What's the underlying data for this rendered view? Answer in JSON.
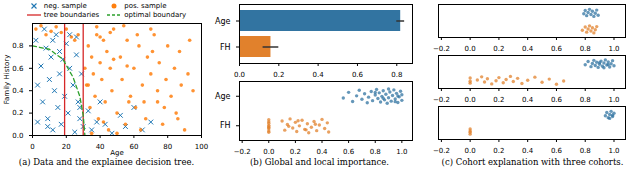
{
  "chart_data": [
    {
      "type": "scatter",
      "title": "(a) Data and the explainee decision tree.",
      "x_label": "Age",
      "y_label": "Family History",
      "xlim": [
        0,
        100
      ],
      "ylim": [
        0,
        1
      ],
      "xticks": [
        0,
        20,
        40,
        60,
        80,
        100
      ],
      "yticks": [
        {
          "value": 0,
          "label": "0.0"
        },
        0.2,
        0.4,
        0.6,
        0.8
      ],
      "legend": "upper right",
      "series": [
        {
          "name": "neg. sample",
          "color": "#1f77b4",
          "marker": "x",
          "x": [
            2,
            3,
            5,
            6,
            8,
            9,
            10,
            11,
            12,
            13,
            14,
            15,
            16,
            17,
            18,
            19,
            20,
            21,
            22,
            24,
            25,
            26,
            27,
            28,
            29,
            30,
            33,
            35,
            38,
            40,
            43,
            47,
            52,
            55,
            60,
            65,
            70,
            3,
            7,
            12,
            16,
            22,
            26,
            9,
            28
          ],
          "values": [
            0.85,
            0.45,
            0.62,
            0.3,
            0.78,
            0.15,
            0.5,
            0.7,
            0.05,
            0.4,
            0.9,
            0.25,
            0.55,
            0.1,
            0.68,
            0.35,
            0.82,
            0.2,
            0.6,
            0.45,
            0.03,
            0.72,
            0.3,
            0.15,
            0.55,
            0.08,
            0.22,
            0.05,
            0.12,
            0.3,
            0.1,
            0.02,
            0.18,
            0.08,
            0.25,
            0.05,
            0.12,
            0.12,
            0.95,
            0.85,
            0.75,
            0.9,
            0.88,
            0.08,
            0.25
          ]
        },
        {
          "name": "pos. sample",
          "color": "#ff7f0e",
          "marker": "o",
          "x": [
            2,
            5,
            8,
            11,
            14,
            17,
            20,
            23,
            25,
            27,
            31,
            32,
            33,
            34,
            35,
            36,
            37,
            38,
            39,
            40,
            41,
            42,
            43,
            44,
            45,
            46,
            47,
            48,
            50,
            52,
            53,
            55,
            56,
            58,
            60,
            61,
            63,
            65,
            67,
            68,
            70,
            72,
            74,
            75,
            77,
            79,
            80,
            82,
            84,
            85,
            87,
            88,
            90,
            92,
            95,
            35,
            42,
            50,
            57,
            64,
            71,
            78,
            86,
            93,
            38,
            46,
            54,
            62,
            70,
            33,
            40,
            48,
            56,
            66,
            74
          ],
          "values": [
            0.95,
            0.98,
            0.9,
            0.93,
            0.97,
            0.92,
            0.95,
            0.88,
            0.85,
            0.9,
            0.6,
            0.45,
            0.8,
            0.25,
            0.7,
            0.55,
            0.35,
            0.9,
            0.15,
            0.65,
            0.5,
            0.85,
            0.3,
            0.75,
            0.05,
            0.6,
            0.4,
            0.95,
            0.2,
            0.7,
            0.5,
            0.1,
            0.85,
            0.35,
            0.6,
            0.25,
            0.8,
            0.45,
            0.15,
            0.7,
            0.55,
            0.9,
            0.3,
            0.65,
            0.1,
            0.5,
            0.8,
            0.35,
            0.6,
            0.2,
            0.75,
            0.45,
            0.05,
            0.55,
            0.4,
            0.02,
            0.12,
            0.02,
            0.3,
            0.05,
            0.75,
            0.25,
            0.15,
            0.85,
            0.97,
            0.92,
            0.98,
            0.9,
            0.95,
            0.45,
            0.88,
            0.68,
            0.62,
            0.3,
            0.4
          ]
        },
        {
          "name": "tree boundaries",
          "color": "#d62728",
          "type": "vline",
          "line_style": "solid",
          "x": [
            19,
            30
          ]
        },
        {
          "name": "optimal boundary",
          "color": "#2ca02c",
          "type": "line",
          "line_style": "dashed",
          "x": [
            0,
            10,
            18,
            24,
            28,
            30,
            31
          ],
          "values": [
            0.8,
            0.77,
            0.68,
            0.52,
            0.35,
            0.18,
            0
          ]
        }
      ]
    },
    {
      "type": "bar",
      "title": "(b) Global and local importance.",
      "orientation": "horizontal",
      "categories": [
        "Age",
        "FH"
      ],
      "values": [
        0.82,
        0.16
      ],
      "errors": [
        0.02,
        0.04
      ],
      "colors": [
        "#3274a1",
        "#e1812c"
      ],
      "xlim": [
        0,
        0.88
      ],
      "xticks": [
        {
          "value": 0,
          "label": "0.0"
        },
        0.2,
        0.4,
        0.6,
        0.8
      ]
    },
    {
      "type": "strip",
      "categories": [
        "Age",
        "FH"
      ],
      "colors": [
        "#3274a1",
        "#e1812c"
      ],
      "values": [
        [
          0.56,
          0.6,
          0.63,
          0.66,
          0.68,
          0.7,
          0.72,
          0.74,
          0.75,
          0.77,
          0.78,
          0.8,
          0.81,
          0.82,
          0.83,
          0.84,
          0.85,
          0.86,
          0.87,
          0.88,
          0.89,
          0.9,
          0.91,
          0.92,
          0.93,
          0.94,
          0.95,
          0.96,
          0.97,
          0.98,
          0.99,
          1.0,
          1.0,
          0.9,
          0.86,
          0.8,
          0.95,
          0.97
        ],
        [
          0,
          0,
          0,
          0,
          0,
          0,
          0,
          0,
          0,
          0.1,
          0.12,
          0.14,
          0.16,
          0.18,
          0.2,
          0.21,
          0.23,
          0.25,
          0.27,
          0.29,
          0.3,
          0.32,
          0.34,
          0.36,
          0.38,
          0.4,
          0.42,
          0.44,
          0.45,
          0.15,
          0.22,
          0.28,
          0.35
        ]
      ],
      "xlim": [
        -0.22,
        1.08
      ],
      "xticks": [
        {
          "value": -0.2,
          "label": "−0.2"
        },
        {
          "value": 0,
          "label": "0.0"
        },
        0.2,
        0.4,
        0.6,
        0.8,
        {
          "value": 1,
          "label": "1.0"
        }
      ]
    },
    {
      "type": "strip",
      "title": "(c) Cohort explanation with three cohorts.",
      "tick_labels": "x",
      "categories": [
        "Age",
        "FH"
      ],
      "colors": [
        "#3274a1",
        "#e1812c"
      ],
      "values": [
        [
          0.79,
          0.8,
          0.81,
          0.82,
          0.83,
          0.84,
          0.85,
          0.86,
          0.87,
          0.88,
          0.89
        ],
        [
          0.78,
          0.8,
          0.81,
          0.82,
          0.83,
          0.84,
          0.85,
          0.86,
          0.87,
          0.88
        ]
      ],
      "xlim": [
        -0.22,
        1.08
      ],
      "xticks": [
        {
          "value": -0.2,
          "label": "−0.2"
        },
        {
          "value": 0,
          "label": "0.0"
        },
        0.2,
        0.4,
        0.6,
        0.8,
        {
          "value": 1,
          "label": "1.0"
        }
      ]
    },
    {
      "type": "strip",
      "tick_labels": "x",
      "categories": [
        "Age",
        "FH"
      ],
      "colors": [
        "#3274a1",
        "#e1812c"
      ],
      "values": [
        [
          0.8,
          0.82,
          0.84,
          0.85,
          0.86,
          0.87,
          0.88,
          0.89,
          0.9,
          0.91,
          0.92,
          0.93,
          0.94,
          0.95,
          0.96,
          0.97,
          0.98,
          0.99,
          1.0,
          0.9,
          0.93,
          0.96
        ],
        [
          0,
          0,
          0,
          0.05,
          0.08,
          0.1,
          0.12,
          0.15,
          0.18,
          0.2,
          0.23,
          0.25,
          0.28,
          0.3,
          0.33,
          0.36,
          0.4,
          0.45,
          0.5,
          0.55,
          0.6,
          0.65
        ]
      ],
      "xlim": [
        -0.22,
        1.08
      ],
      "xticks": [
        {
          "value": -0.2,
          "label": "−0.2"
        },
        {
          "value": 0,
          "label": "0.0"
        },
        0.2,
        0.4,
        0.6,
        0.8,
        {
          "value": 1,
          "label": "1.0"
        }
      ]
    },
    {
      "type": "strip",
      "tick_labels": "x",
      "categories": [
        "Age",
        "FH"
      ],
      "colors": [
        "#3274a1",
        "#e1812c"
      ],
      "values": [
        [
          0.94,
          0.95,
          0.96,
          0.97,
          0.98,
          0.99,
          1.0,
          0.97,
          0.99
        ],
        [
          0,
          0,
          0,
          0
        ]
      ],
      "xlim": [
        -0.22,
        1.08
      ],
      "xticks": [
        {
          "value": -0.2,
          "label": "−0.2"
        },
        {
          "value": 0,
          "label": "0.0"
        },
        0.2,
        0.4,
        0.6,
        0.8,
        {
          "value": 1,
          "label": "1.0"
        }
      ]
    }
  ]
}
